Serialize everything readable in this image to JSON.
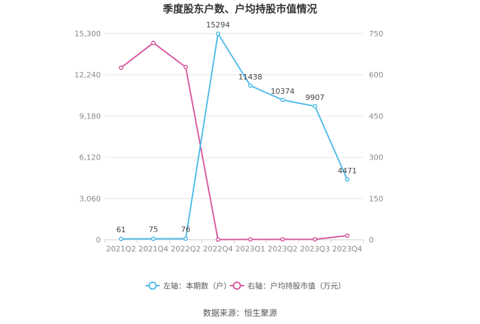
{
  "chart_data": {
    "type": "line",
    "title": "季度股东户数、户均持股市值情况",
    "categories": [
      "2021Q2",
      "2021Q4",
      "2022Q2",
      "2022Q4",
      "2023Q1",
      "2023Q2",
      "2023Q3",
      "2023Q4"
    ],
    "left_axis": {
      "min": 0,
      "max": 15300,
      "ticks": [
        "0",
        "3,060",
        "6,120",
        "9,180",
        "12,240",
        "15,300"
      ]
    },
    "right_axis": {
      "min": 0,
      "max": 750,
      "ticks": [
        "0",
        "150",
        "300",
        "450",
        "600",
        "750"
      ]
    },
    "grid": true,
    "legend_position": "bottom",
    "series": [
      {
        "name": "左轴：本期数（户）",
        "axis": "left",
        "color": "#4dbbe9",
        "values": [
          61,
          75,
          76,
          15294,
          11438,
          10374,
          9907,
          4471
        ],
        "labels": [
          "61",
          "75",
          "76",
          "15294",
          "11438",
          "10374",
          "9907",
          "4471"
        ]
      },
      {
        "name": "右轴：户均持股市值（万元）",
        "axis": "right",
        "color": "#d6579f",
        "values": [
          626,
          716,
          628,
          0.5,
          1.2,
          1.5,
          1.6,
          15
        ]
      }
    ]
  },
  "source": "数据来源：恒生聚源"
}
